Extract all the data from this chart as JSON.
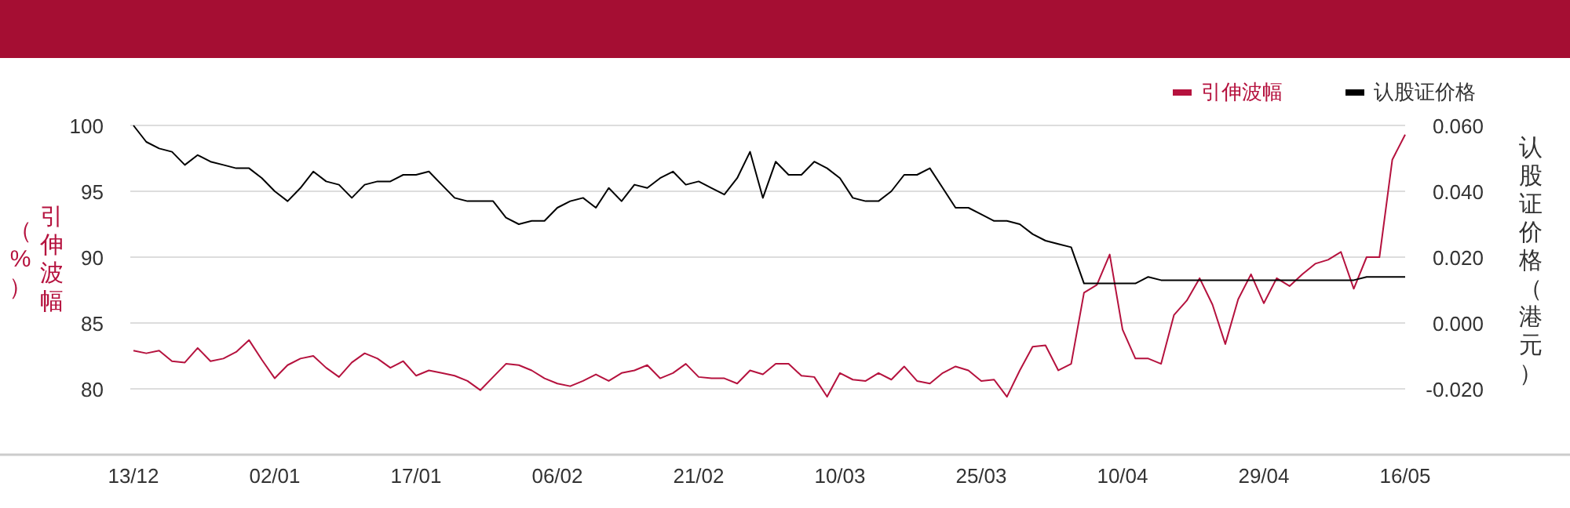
{
  "chart_data": {
    "type": "line",
    "categories": [
      "13/12",
      null,
      null,
      null,
      null,
      null,
      null,
      null,
      null,
      null,
      null,
      "02/01",
      null,
      null,
      null,
      null,
      null,
      null,
      null,
      null,
      null,
      null,
      "17/01",
      null,
      null,
      null,
      null,
      null,
      null,
      null,
      null,
      null,
      null,
      "06/02",
      null,
      null,
      null,
      null,
      null,
      null,
      null,
      null,
      null,
      null,
      "21/02",
      null,
      null,
      null,
      null,
      null,
      null,
      null,
      null,
      null,
      null,
      "10/03",
      null,
      null,
      null,
      null,
      null,
      null,
      null,
      null,
      null,
      null,
      "25/03",
      null,
      null,
      null,
      null,
      null,
      null,
      null,
      null,
      null,
      null,
      "10/04",
      null,
      null,
      null,
      null,
      null,
      null,
      null,
      null,
      null,
      null,
      "29/04",
      null,
      null,
      null,
      null,
      null,
      null,
      null,
      null,
      null,
      null,
      "16/05"
    ],
    "series": [
      {
        "name": "引伸波幅",
        "color": "#b5123e",
        "axis": "y",
        "values": [
          82.9,
          82.7,
          82.9,
          82.1,
          82.0,
          83.1,
          82.1,
          82.3,
          82.8,
          83.7,
          82.2,
          80.8,
          81.8,
          82.3,
          82.5,
          81.6,
          80.9,
          82.0,
          82.7,
          82.3,
          81.6,
          82.1,
          81.0,
          81.4,
          81.2,
          81.0,
          80.6,
          79.9,
          80.9,
          81.9,
          81.8,
          81.4,
          80.8,
          80.4,
          80.2,
          80.6,
          81.1,
          80.6,
          81.2,
          81.4,
          81.8,
          80.8,
          81.2,
          81.9,
          80.9,
          80.8,
          80.8,
          80.4,
          81.4,
          81.1,
          81.9,
          81.9,
          81.0,
          80.9,
          79.4,
          81.2,
          80.7,
          80.6,
          81.2,
          80.7,
          81.7,
          80.6,
          80.4,
          81.2,
          81.7,
          81.4,
          80.6,
          80.7,
          79.4,
          81.4,
          83.2,
          83.3,
          81.4,
          81.9,
          87.3,
          87.9,
          90.2,
          84.5,
          82.3,
          82.3,
          81.9,
          85.6,
          86.7,
          88.4,
          86.4,
          83.4,
          86.8,
          88.7,
          86.5,
          88.4,
          87.8,
          88.7,
          89.5,
          89.8,
          90.4,
          87.6,
          90.0,
          90.0,
          97.4,
          99.3
        ]
      },
      {
        "name": "认股证价格",
        "color": "#000000",
        "axis": "y2",
        "values": [
          0.06,
          0.055,
          0.053,
          0.052,
          0.048,
          0.051,
          0.049,
          0.048,
          0.047,
          0.047,
          0.044,
          0.04,
          0.037,
          0.041,
          0.046,
          0.043,
          0.042,
          0.038,
          0.042,
          0.043,
          0.043,
          0.045,
          0.045,
          0.046,
          0.042,
          0.038,
          0.037,
          0.037,
          0.037,
          0.032,
          0.03,
          0.031,
          0.031,
          0.035,
          0.037,
          0.038,
          0.035,
          0.041,
          0.037,
          0.042,
          0.041,
          0.044,
          0.046,
          0.042,
          0.043,
          0.041,
          0.039,
          0.044,
          0.052,
          0.038,
          0.049,
          0.045,
          0.045,
          0.049,
          0.047,
          0.044,
          0.038,
          0.037,
          0.037,
          0.04,
          0.045,
          0.045,
          0.047,
          0.041,
          0.035,
          0.035,
          0.033,
          0.031,
          0.031,
          0.03,
          0.027,
          0.025,
          0.024,
          0.023,
          0.012,
          0.012,
          0.012,
          0.012,
          0.012,
          0.014,
          0.013,
          0.013,
          0.013,
          0.013,
          0.013,
          0.013,
          0.013,
          0.013,
          0.013,
          0.013,
          0.013,
          0.013,
          0.013,
          0.013,
          0.013,
          0.013,
          0.014,
          0.014,
          0.014,
          0.014
        ]
      }
    ],
    "ylim": [
      75,
      100
    ],
    "yticks": [
      80,
      85,
      90,
      95,
      100
    ],
    "y2lim": [
      -0.04,
      0.06
    ],
    "y2ticks": [
      {
        "value": -0.02,
        "label": "-0.020"
      },
      {
        "value": 0,
        "label": "0.000"
      },
      {
        "value": 0.02,
        "label": "0.020"
      },
      {
        "value": 0.04,
        "label": "0.040"
      },
      {
        "value": 0.06,
        "label": "0.060"
      }
    ],
    "ylabel": "引伸波幅（%）",
    "y2label": "认股证价格（港元）",
    "grid": "y",
    "legend": "top right"
  }
}
